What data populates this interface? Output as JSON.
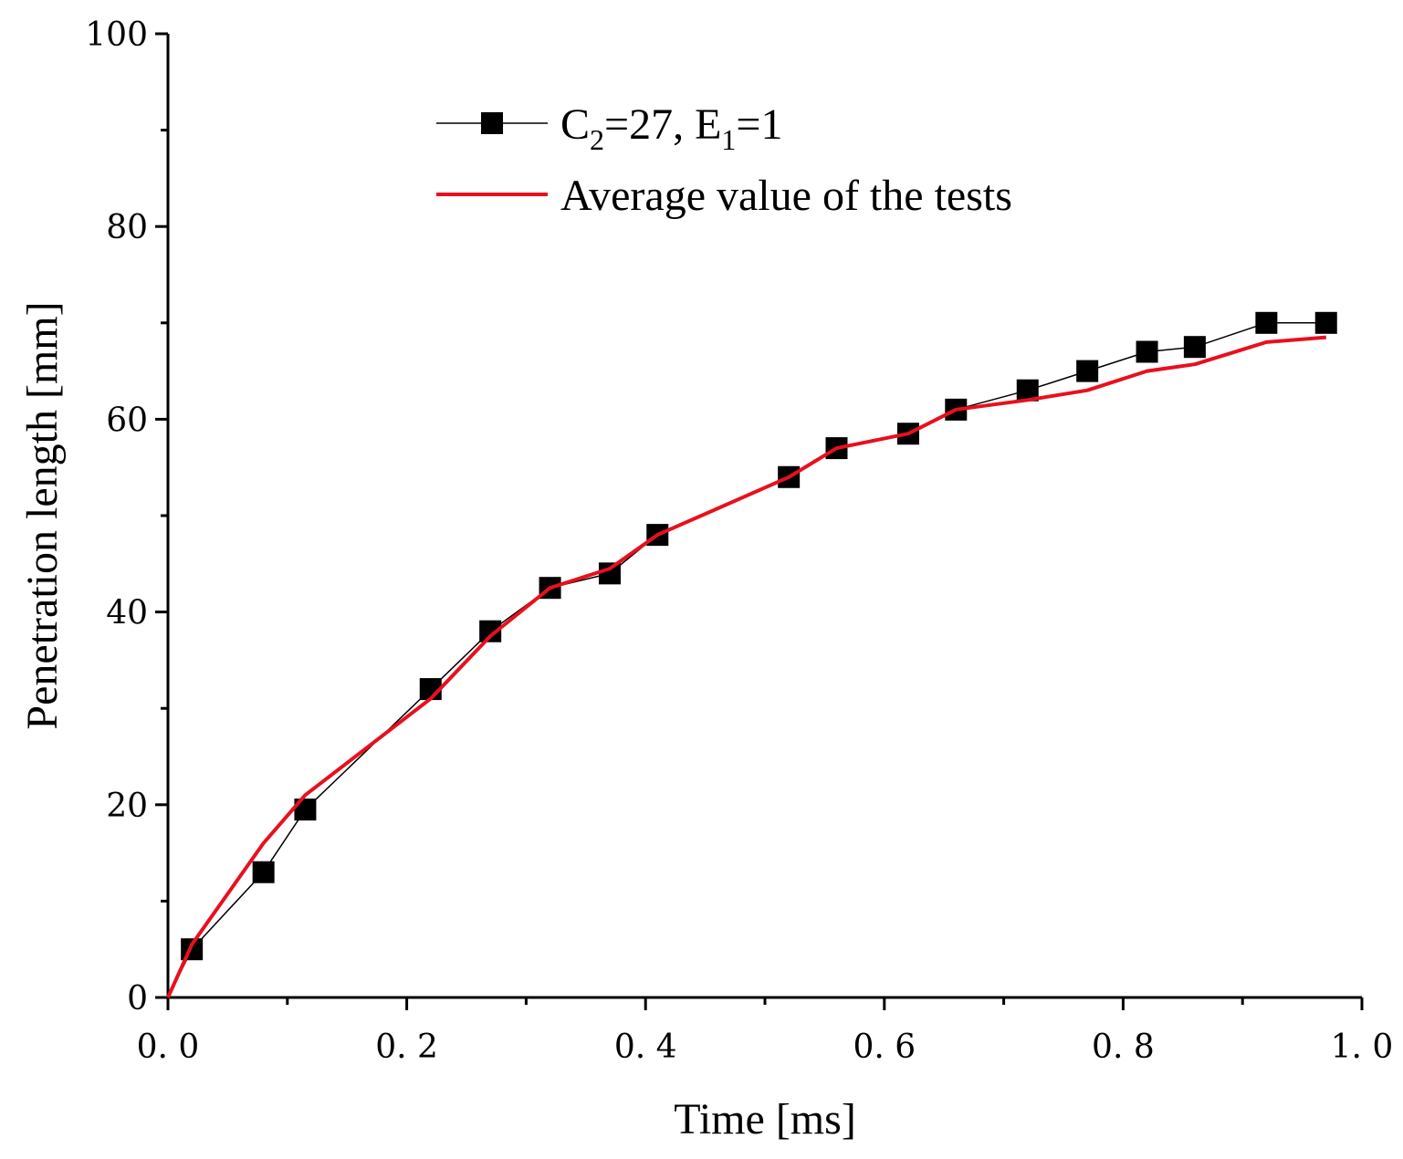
{
  "chart_data": {
    "type": "line",
    "xlabel": "Time [ms]",
    "ylabel": "Penetration length [mm]",
    "xlim": [
      0.0,
      1.0
    ],
    "ylim": [
      0,
      100
    ],
    "x_ticks": [
      0.0,
      0.2,
      0.4,
      0.6,
      0.8,
      1.0
    ],
    "x_tick_labels": [
      "0. 0",
      "0. 2",
      "0. 4",
      "0. 6",
      "0. 8",
      "1. 0"
    ],
    "y_ticks": [
      0,
      20,
      40,
      60,
      80,
      100
    ],
    "y_tick_labels": [
      "0",
      "20",
      "40",
      "60",
      "80",
      "100"
    ],
    "grid": false,
    "legend_position": "top-center",
    "series": [
      {
        "name": "C2=27, E1=1",
        "legend_parts": {
          "c": "C",
          "c_sub": "2",
          "mid": "=27, E",
          "e_sub": "1",
          "end": "=1"
        },
        "color": "#000000",
        "marker": "square",
        "x": [
          0.0,
          0.02,
          0.08,
          0.115,
          0.22,
          0.27,
          0.32,
          0.37,
          0.41,
          0.52,
          0.56,
          0.62,
          0.66,
          0.72,
          0.77,
          0.82,
          0.86,
          0.92,
          0.97
        ],
        "y": [
          0,
          5,
          13,
          19.5,
          32,
          38,
          42.5,
          44,
          48,
          54,
          57,
          58.5,
          61,
          63,
          65,
          67,
          67.5,
          70,
          70
        ]
      },
      {
        "name": "Average value of the tests",
        "color": "#e8101e",
        "marker": "none",
        "x": [
          0.0,
          0.02,
          0.08,
          0.115,
          0.22,
          0.27,
          0.32,
          0.37,
          0.41,
          0.52,
          0.56,
          0.62,
          0.66,
          0.72,
          0.77,
          0.82,
          0.86,
          0.92,
          0.97
        ],
        "y": [
          0,
          5.5,
          16,
          21,
          31,
          37.5,
          42.5,
          44.5,
          48,
          54,
          57,
          58.5,
          61,
          62,
          63,
          65,
          65.7,
          68,
          68.5
        ]
      }
    ]
  }
}
